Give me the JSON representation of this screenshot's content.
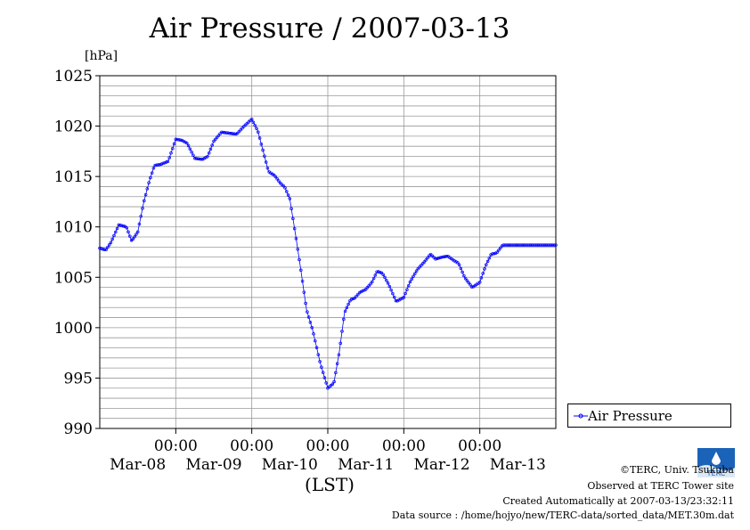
{
  "chart_data": {
    "type": "line",
    "title": "Air Pressure / 2007-03-13",
    "ylabel": "[hPa]",
    "xlabel": "(LST)",
    "ylim": [
      990,
      1025
    ],
    "yticks": [
      990,
      995,
      1000,
      1005,
      1010,
      1015,
      1020,
      1025
    ],
    "xlim_days": [
      0,
      6
    ],
    "xtick_time_labels": [
      "00:00",
      "00:00",
      "00:00",
      "00:00",
      "00:00"
    ],
    "xtick_date_labels": [
      "Mar-08",
      "Mar-09",
      "Mar-10",
      "Mar-11",
      "Mar-12",
      "Mar-13"
    ],
    "grid": true,
    "legend_position": "right",
    "series": [
      {
        "name": "Air Pressure",
        "color": "#0000ff",
        "x_days": [
          0.0,
          0.08,
          0.15,
          0.25,
          0.35,
          0.42,
          0.5,
          0.58,
          0.65,
          0.72,
          0.8,
          0.9,
          1.0,
          1.08,
          1.15,
          1.25,
          1.35,
          1.42,
          1.5,
          1.6,
          1.7,
          1.8,
          1.9,
          2.0,
          2.08,
          2.15,
          2.22,
          2.3,
          2.38,
          2.43,
          2.5,
          2.58,
          2.65,
          2.72,
          2.8,
          2.9,
          3.0,
          3.08,
          3.15,
          3.22,
          3.3,
          3.35,
          3.42,
          3.5,
          3.58,
          3.65,
          3.72,
          3.8,
          3.9,
          4.0,
          4.08,
          4.18,
          4.28,
          4.35,
          4.42,
          4.5,
          4.58,
          4.65,
          4.72,
          4.8,
          4.9,
          5.0,
          5.08,
          5.15,
          5.22,
          5.3,
          5.38,
          5.45,
          5.5,
          5.58,
          5.65,
          5.72,
          5.8,
          5.9,
          6.0
        ],
        "values": [
          1007.9,
          1007.7,
          1008.5,
          1010.2,
          1010.0,
          1008.6,
          1009.5,
          1012.5,
          1014.5,
          1016.1,
          1016.2,
          1016.5,
          1018.7,
          1018.6,
          1018.3,
          1016.8,
          1016.7,
          1017.0,
          1018.5,
          1019.4,
          1019.3,
          1019.2,
          1020.0,
          1020.7,
          1019.5,
          1017.5,
          1015.5,
          1015.1,
          1014.3,
          1014.0,
          1012.8,
          1009.0,
          1005.5,
          1001.8,
          999.8,
          996.5,
          994.0,
          994.5,
          997.5,
          1001.5,
          1002.8,
          1002.9,
          1003.5,
          1003.8,
          1004.5,
          1005.6,
          1005.4,
          1004.3,
          1002.6,
          1003.0,
          1004.5,
          1005.8,
          1006.6,
          1007.3,
          1006.8,
          1007.0,
          1007.1,
          1006.7,
          1006.4,
          1005.0,
          1004.0,
          1004.5,
          1006.2,
          1007.3,
          1007.4,
          1008.2,
          1008.2,
          1008.2,
          1008.2,
          1008.2,
          1008.2,
          1008.2,
          1008.2,
          1008.2,
          1008.2
        ]
      }
    ]
  },
  "legend": {
    "label": "Air Pressure"
  },
  "credits": {
    "copyright": "©TERC, Univ. Tsukuba",
    "observed": "Observed at TERC Tower site",
    "created": "Created Automatically at 2007-03-13/23:32:11",
    "source": "Data source : /home/hojyo/new/TERC-data/sorted_data/MET.30m.dat"
  },
  "logo_text": "TERC"
}
